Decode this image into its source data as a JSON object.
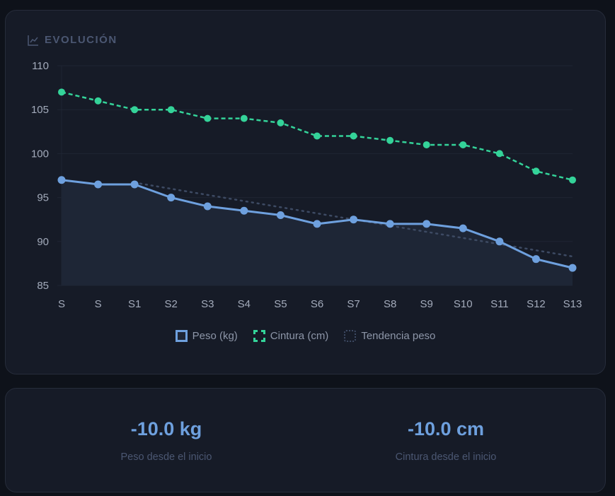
{
  "title": "EVOLUCIÓN",
  "chart_data": {
    "type": "line",
    "title": "EVOLUCIÓN",
    "categories": [
      "S",
      "S",
      "S1",
      "S2",
      "S3",
      "S4",
      "S5",
      "S6",
      "S7",
      "S8",
      "S9",
      "S10",
      "S11",
      "S12",
      "S13"
    ],
    "ylim": [
      85,
      110
    ],
    "yticks": [
      85,
      90,
      95,
      100,
      105,
      110
    ],
    "grid": true,
    "legend_position": "bottom",
    "series": [
      {
        "name": "Peso (kg)",
        "color": "#6ea0de",
        "style": "solid-area",
        "values": [
          97,
          96.5,
          96.5,
          95,
          94,
          93.5,
          93,
          92,
          92.5,
          92,
          92,
          91.5,
          90,
          88,
          87
        ]
      },
      {
        "name": "Cintura (cm)",
        "color": "#34d399",
        "style": "dashed",
        "values": [
          107,
          106,
          105,
          105,
          104,
          104,
          103.5,
          102,
          102,
          101.5,
          101,
          101,
          100,
          98,
          97
        ]
      },
      {
        "name": "Tendencia peso",
        "color": "#3d4a63",
        "style": "dotted",
        "values": [
          null,
          null,
          96.7,
          96.0,
          95.3,
          94.6,
          93.9,
          93.2,
          92.5,
          91.8,
          91.1,
          90.4,
          89.7,
          89.0,
          88.3
        ]
      }
    ]
  },
  "stats": [
    {
      "value": "-10.0 kg",
      "label": "Peso desde el inicio"
    },
    {
      "value": "-10.0 cm",
      "label": "Cintura desde el inicio"
    }
  ]
}
